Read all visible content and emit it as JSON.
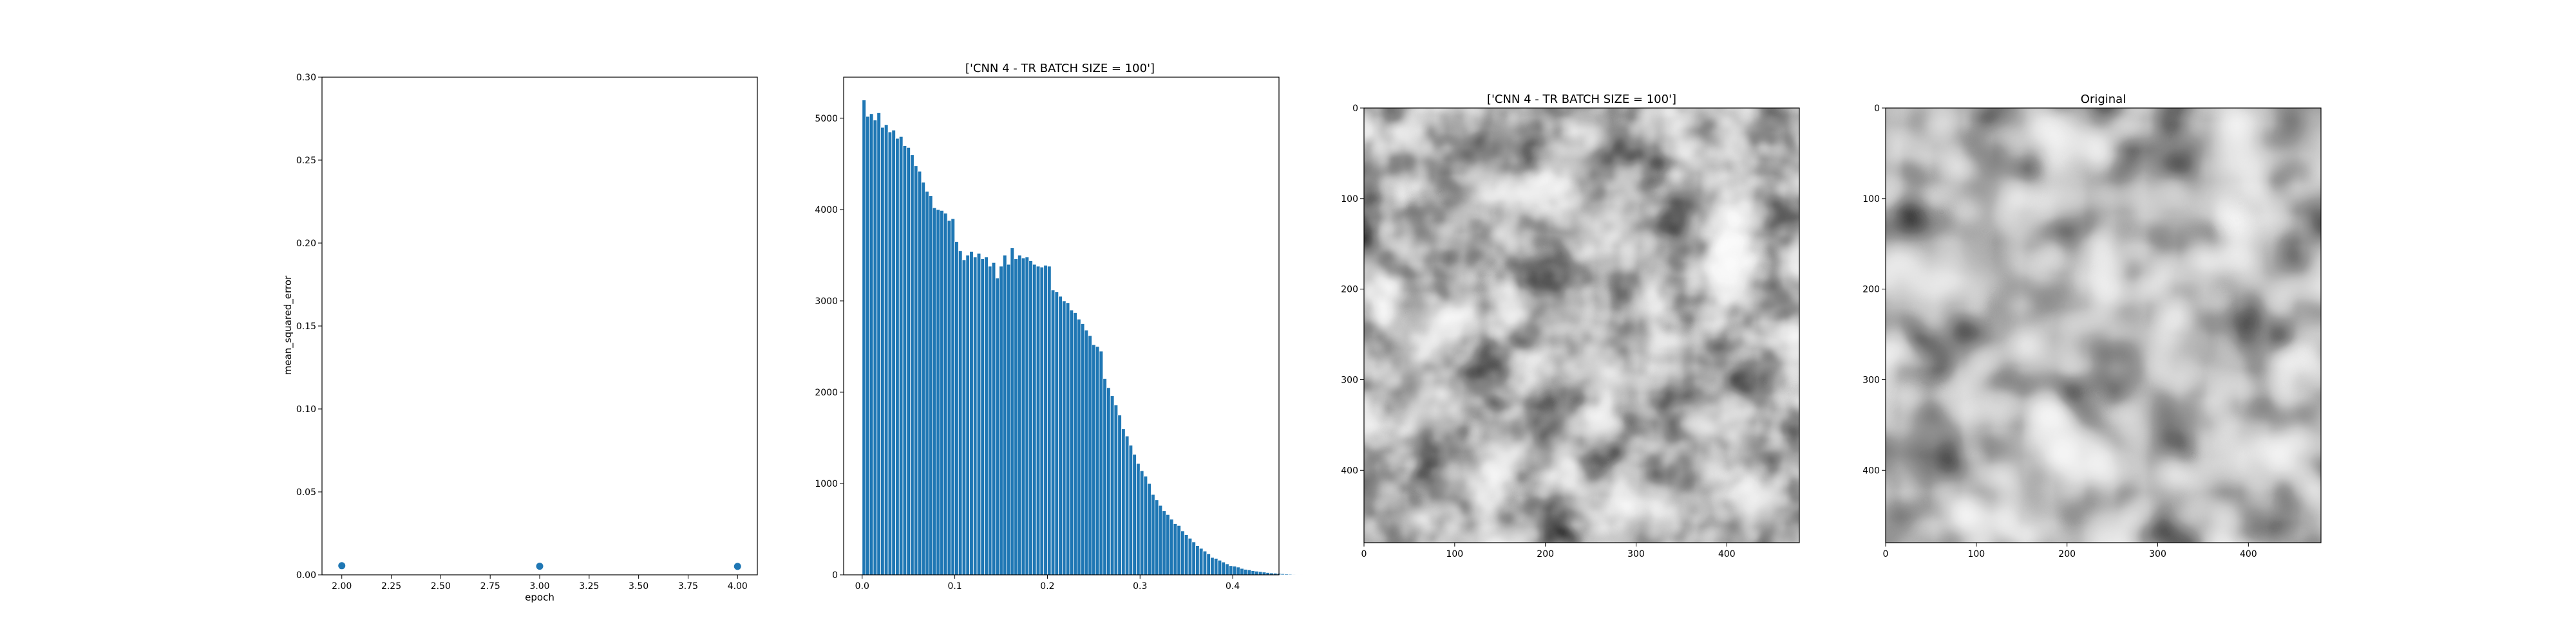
{
  "chart_data": [
    {
      "type": "scatter",
      "xlabel": "epoch",
      "ylabel": "mean_squared_error",
      "xlim": [
        1.9,
        4.1
      ],
      "ylim": [
        0.0,
        0.3
      ],
      "x_ticks": [
        "2.00",
        "2.25",
        "2.50",
        "2.75",
        "3.00",
        "3.25",
        "3.50",
        "3.75",
        "4.00"
      ],
      "y_ticks": [
        "0.00",
        "0.05",
        "0.10",
        "0.15",
        "0.20",
        "0.25",
        "0.30"
      ],
      "points": [
        {
          "x": 2,
          "y": 0.0055
        },
        {
          "x": 3,
          "y": 0.0052
        },
        {
          "x": 4,
          "y": 0.0051
        }
      ],
      "color": "#1f77b4",
      "grid": false
    },
    {
      "type": "bar",
      "title": "['CNN 4 - TR BATCH SIZE = 100']",
      "xlim": [
        -0.02,
        0.45
      ],
      "ylim": [
        0,
        5450
      ],
      "x_ticks": [
        "0.0",
        "0.1",
        "0.2",
        "0.3",
        "0.4"
      ],
      "y_ticks": [
        "0",
        "1000",
        "2000",
        "3000",
        "4000",
        "5000"
      ],
      "bin_start": 0.0,
      "bin_width": 0.004,
      "counts": [
        5200,
        5020,
        5050,
        4980,
        5060,
        4900,
        4930,
        4850,
        4870,
        4780,
        4800,
        4700,
        4680,
        4600,
        4480,
        4420,
        4300,
        4200,
        4150,
        4020,
        4000,
        3990,
        3960,
        3880,
        3900,
        3650,
        3550,
        3450,
        3500,
        3540,
        3480,
        3520,
        3460,
        3480,
        3380,
        3420,
        3250,
        3380,
        3500,
        3400,
        3580,
        3460,
        3500,
        3470,
        3480,
        3440,
        3400,
        3380,
        3370,
        3390,
        3380,
        3120,
        3100,
        3050,
        3000,
        2980,
        2900,
        2870,
        2800,
        2750,
        2680,
        2620,
        2520,
        2500,
        2450,
        2150,
        2050,
        1960,
        1860,
        1750,
        1600,
        1520,
        1420,
        1320,
        1220,
        1140,
        1080,
        1000,
        880,
        820,
        760,
        700,
        660,
        610,
        560,
        540,
        480,
        440,
        400,
        360,
        320,
        290,
        260,
        230,
        190,
        180,
        160,
        140,
        120,
        100,
        95,
        85,
        70,
        60,
        55,
        45,
        40,
        35,
        30,
        25,
        20,
        18,
        15,
        12,
        10,
        8,
        6,
        5,
        4,
        3,
        2,
        2,
        1,
        1,
        1
      ],
      "color": "#1f77b4",
      "edge_color": "#ffffff"
    },
    {
      "type": "image",
      "title": "['CNN 4 - TR BATCH SIZE = 100']",
      "colormap": "gray",
      "x_ticks": [
        "0",
        "100",
        "200",
        "300",
        "400"
      ],
      "y_ticks": [
        "0",
        "100",
        "200",
        "300",
        "400"
      ],
      "extent": [
        0,
        480
      ]
    },
    {
      "type": "image",
      "title": "Original",
      "colormap": "gray",
      "x_ticks": [
        "0",
        "100",
        "200",
        "300",
        "400"
      ],
      "y_ticks": [
        "0",
        "100",
        "200",
        "300",
        "400"
      ],
      "extent": [
        0,
        480
      ]
    }
  ]
}
